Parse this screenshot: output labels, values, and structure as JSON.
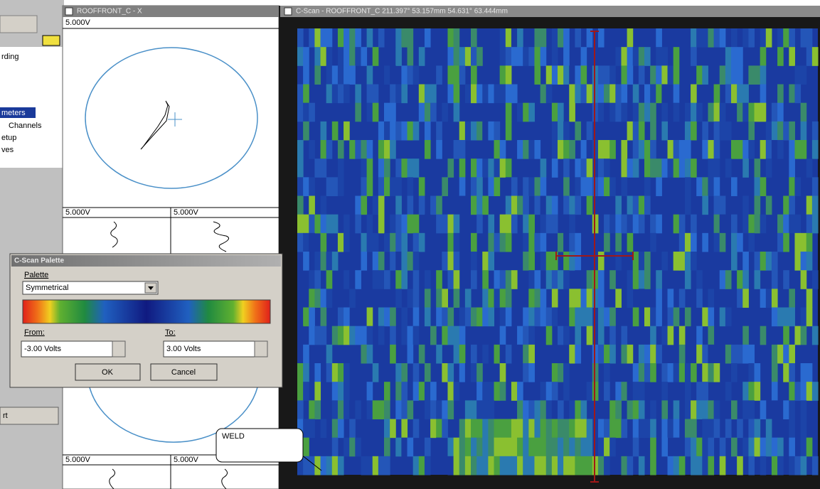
{
  "left_panel": {
    "items": [
      "rding",
      "meters",
      "Channels",
      "etup",
      "ves"
    ],
    "button": "rt"
  },
  "xy_window": {
    "title": "ROOFFRONT_C - X",
    "scale": "5.000V",
    "strip_scales": [
      "5.000V",
      "5.000V",
      "5.000V",
      "5.000V"
    ]
  },
  "cscan_window": {
    "title": "C-Scan - ROOFFRONT_C  211.397° 53.157mm 54.631° 63.444mm"
  },
  "palette_dialog": {
    "title": "C-Scan Palette",
    "palette_label": "Palette",
    "palette_value": "Symmetrical",
    "from_label": "From:",
    "to_label": "To:",
    "from_value": "-3.00 Volts",
    "to_value": "3.00 Volts",
    "ok": "OK",
    "cancel": "Cancel"
  },
  "annotation": {
    "label": "WELD"
  }
}
